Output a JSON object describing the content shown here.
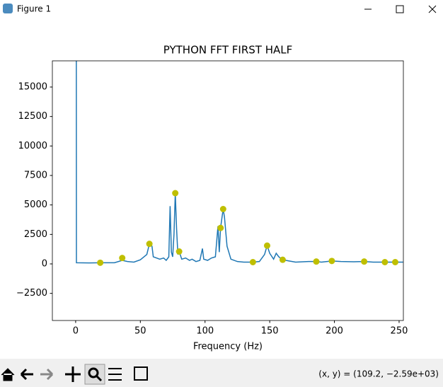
{
  "window": {
    "title": "Figure 1",
    "status": "(x, y) = (109.2, −2.59e+03)"
  },
  "chart_data": {
    "type": "line",
    "title": "PYTHON FFT FIRST HALF",
    "x_label": "Frequency (Hz)",
    "xlim": [
      -18,
      253.3
    ],
    "ylim": [
      -4800,
      17220
    ],
    "xticks": [
      0,
      50,
      100,
      150,
      200,
      250
    ],
    "yticks": [
      {
        "value": -2500,
        "label": "−2500"
      },
      0,
      2500,
      5000,
      7500,
      10000,
      12500,
      15000
    ],
    "series": [
      {
        "color": "#1f77b4",
        "x": [
          0.5,
          0.6,
          10,
          19,
          30,
          36,
          40,
          45,
          50,
          55,
          57,
          59,
          60,
          65,
          68,
          70,
          72,
          73,
          74,
          75,
          76,
          77,
          78,
          79,
          80,
          82,
          85,
          88,
          90,
          93,
          96,
          98,
          99,
          102,
          105,
          108,
          110,
          111,
          112,
          114,
          115,
          117,
          120,
          125,
          130,
          137,
          142,
          146,
          148,
          150,
          153,
          155,
          157,
          160,
          165,
          170,
          180,
          186,
          190,
          198,
          205,
          215,
          223,
          230,
          239,
          247,
          253
        ],
        "values": [
          20000,
          100,
          80,
          100,
          100,
          300,
          200,
          150,
          350,
          800,
          1700,
          1500,
          600,
          400,
          500,
          300,
          600,
          4900,
          1000,
          600,
          2500,
          6000,
          3000,
          800,
          1050,
          400,
          500,
          300,
          400,
          200,
          300,
          1300,
          400,
          300,
          500,
          600,
          3200,
          1000,
          3050,
          4650,
          4000,
          1500,
          400,
          200,
          150,
          150,
          200,
          800,
          1550,
          900,
          400,
          900,
          600,
          350,
          250,
          150,
          200,
          200,
          150,
          250,
          200,
          180,
          200,
          150,
          150,
          150,
          150
        ]
      },
      {
        "type": "scatter",
        "color": "#bfbf00",
        "x": [
          19,
          36,
          57,
          77,
          80,
          112,
          114,
          137,
          148,
          160,
          186,
          198,
          223,
          239,
          247
        ],
        "values": [
          100,
          500,
          1700,
          6000,
          1050,
          3050,
          4650,
          150,
          1550,
          350,
          200,
          250,
          200,
          150,
          150
        ]
      }
    ]
  }
}
